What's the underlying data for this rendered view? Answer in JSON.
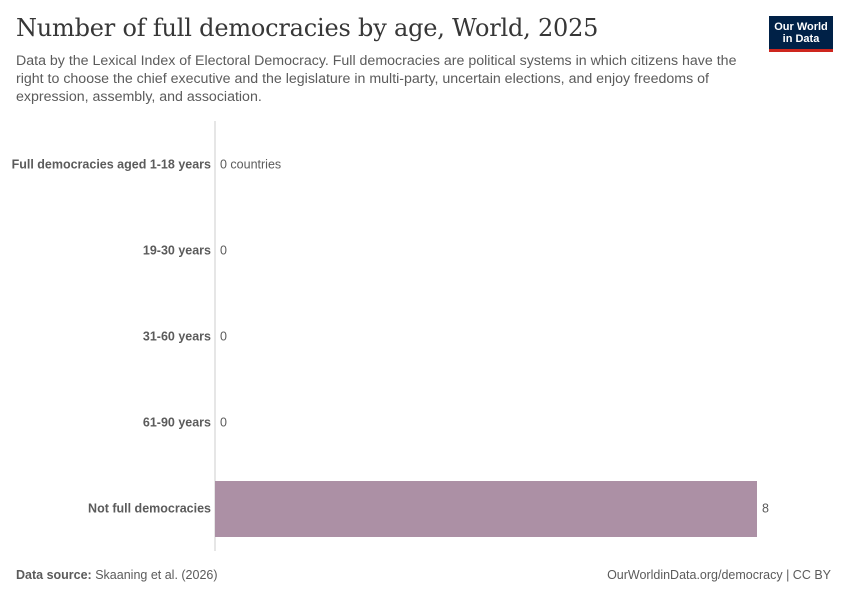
{
  "header": {
    "title": "Number of full democracies by age, World, 2025",
    "subtitle": "Data by the Lexical Index of Electoral Democracy. Full democracies are political systems in which citizens have the right to choose the chief executive and the legislature in multi-party, uncertain elections, and enjoy freedoms of expression, assembly, and association."
  },
  "logo": {
    "line1": "Our World",
    "line2": "in Data"
  },
  "footer": {
    "source_label": "Data source:",
    "source_value": "Skaaning et al. (2026)",
    "link_text": "OurWorldinData.org/democracy | CC BY"
  },
  "chart_data": {
    "type": "bar",
    "orientation": "horizontal",
    "categories": [
      "Full democracies aged 1-18 years",
      "19-30 years",
      "31-60 years",
      "61-90 years",
      "Not full democracies"
    ],
    "values": [
      0,
      0,
      0,
      0,
      8
    ],
    "value_labels": [
      "0 countries",
      "0",
      "0",
      "0",
      "8"
    ],
    "xlim": [
      0,
      8
    ],
    "colors": {
      "bar": "#ac90a5",
      "axis": "#cccccc"
    },
    "grid": false
  }
}
